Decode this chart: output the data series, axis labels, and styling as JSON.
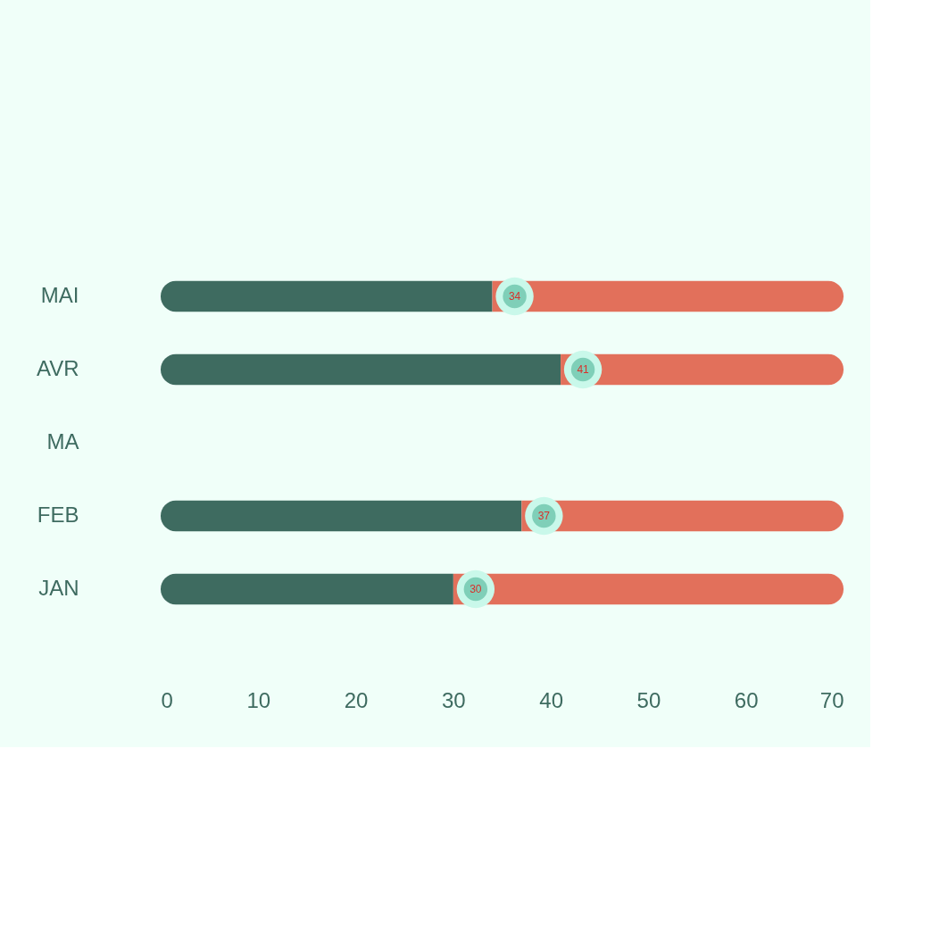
{
  "chart_data": {
    "type": "bar",
    "orientation": "horizontal",
    "stacked": true,
    "categories": [
      "MAI",
      "AVR",
      "MA",
      "FEB",
      "JAN"
    ],
    "series": [
      {
        "color": "#3e6b60",
        "values": [
          34,
          41,
          null,
          37,
          30
        ],
        "value_labels": [
          "34",
          "41",
          null,
          "37",
          "30"
        ]
      },
      {
        "color": "#e2705b",
        "values": [
          36,
          29,
          null,
          33,
          40
        ]
      }
    ],
    "xlim": [
      0,
      70
    ],
    "xticks": [
      0,
      10,
      20,
      30,
      40,
      50,
      60,
      70
    ],
    "grid": false
  }
}
